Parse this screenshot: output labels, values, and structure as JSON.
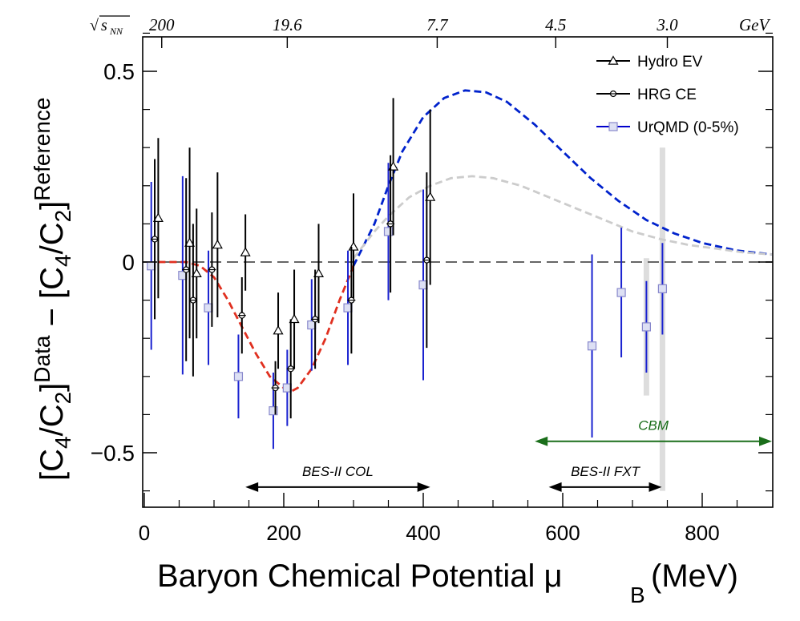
{
  "chart_data": {
    "type": "scatter",
    "xlabel": "Baryon Chemical Potential μ",
    "xlabel_sub": "B",
    "xlabel_unit": "(MeV)",
    "ylabel_left": "[C",
    "ylabel_sub1": "4",
    "ylabel_mid1": "/C",
    "ylabel_sub2": "2",
    "ylabel_mid2": "]",
    "ylabel_sup1": "Data",
    "ylabel_minus": " − [C",
    "ylabel_sup2": "Reference",
    "xlim": [
      0,
      900
    ],
    "ylim": [
      -0.65,
      0.65
    ],
    "x_ticks": [
      0,
      200,
      400,
      600,
      800
    ],
    "x_tick_labels": [
      "0",
      "200",
      "400",
      "600",
      "800"
    ],
    "y_ticks": [
      -0.5,
      0,
      0.5
    ],
    "y_tick_labels": [
      "−0.5",
      "0",
      "0.5"
    ],
    "top_axis": {
      "label": "√s_NN",
      "label_main": "√",
      "label_s": "s",
      "label_sub": "NN",
      "unit": "GeV",
      "ticks": [
        {
          "label": "200",
          "mu": 25
        },
        {
          "label": "19.6",
          "mu": 205
        },
        {
          "label": "7.7",
          "mu": 420
        },
        {
          "label": "4.5",
          "mu": 590
        },
        {
          "label": "3.0",
          "mu": 750
        }
      ]
    },
    "legend": {
      "position": "top-right",
      "entries": [
        {
          "name": "Hydro EV",
          "marker": "triangle",
          "color": "#000000"
        },
        {
          "name": "HRG CE",
          "marker": "cross",
          "color": "#000000"
        },
        {
          "name": "UrQMD (0-5%)",
          "marker": "square",
          "color": "#0000cc"
        }
      ]
    },
    "series": [
      {
        "name": "Hydro EV",
        "marker": "triangle",
        "color": "#000000",
        "points": [
          {
            "x": 20,
            "y": 0.115,
            "err": 0.21
          },
          {
            "x": 65,
            "y": 0.05,
            "err": 0.25
          },
          {
            "x": 75,
            "y": -0.03,
            "err": 0.17
          },
          {
            "x": 105,
            "y": 0.045,
            "err": 0.19
          },
          {
            "x": 145,
            "y": 0.025,
            "err": 0.1
          },
          {
            "x": 192,
            "y": -0.18,
            "err": 0.1
          },
          {
            "x": 215,
            "y": -0.15,
            "err": 0.13
          },
          {
            "x": 250,
            "y": -0.03,
            "err": 0.13
          },
          {
            "x": 300,
            "y": 0.04,
            "err": 0.14
          },
          {
            "x": 357,
            "y": 0.25,
            "err": 0.18
          },
          {
            "x": 410,
            "y": 0.17,
            "err": 0.23
          }
        ]
      },
      {
        "name": "HRG CE",
        "marker": "cross",
        "color": "#000000",
        "points": [
          {
            "x": 15,
            "y": 0.06,
            "err": 0.21
          },
          {
            "x": 60,
            "y": -0.02,
            "err": 0.24
          },
          {
            "x": 70,
            "y": -0.1,
            "err": 0.2
          },
          {
            "x": 97,
            "y": -0.02,
            "err": 0.15
          },
          {
            "x": 140,
            "y": -0.14,
            "err": 0.1
          },
          {
            "x": 188,
            "y": -0.33,
            "err": 0.07
          },
          {
            "x": 210,
            "y": -0.28,
            "err": 0.13
          },
          {
            "x": 245,
            "y": -0.15,
            "err": 0.13
          },
          {
            "x": 297,
            "y": -0.1,
            "err": 0.14
          },
          {
            "x": 353,
            "y": 0.1,
            "err": 0.18
          },
          {
            "x": 405,
            "y": 0.005,
            "err": 0.23
          }
        ]
      },
      {
        "name": "UrQMD (0-5%)",
        "marker": "square",
        "color": "#0000cc",
        "points": [
          {
            "x": 10,
            "y": -0.01,
            "err": 0.22
          },
          {
            "x": 55,
            "y": -0.035,
            "err": 0.26
          },
          {
            "x": 92,
            "y": -0.12,
            "err": 0.15
          },
          {
            "x": 135,
            "y": -0.3,
            "err": 0.11
          },
          {
            "x": 185,
            "y": -0.39,
            "err": 0.1
          },
          {
            "x": 205,
            "y": -0.33,
            "err": 0.1
          },
          {
            "x": 240,
            "y": -0.165,
            "err": 0.12
          },
          {
            "x": 292,
            "y": -0.12,
            "err": 0.15
          },
          {
            "x": 350,
            "y": 0.08,
            "err": 0.18
          },
          {
            "x": 400,
            "y": -0.06,
            "err": 0.25
          },
          {
            "x": 642,
            "y": -0.22,
            "err": 0.24
          },
          {
            "x": 684,
            "y": -0.08,
            "err": 0.17
          },
          {
            "x": 720,
            "y": -0.17,
            "err": 0.12
          },
          {
            "x": 743,
            "y": -0.07,
            "err": 0.12
          }
        ]
      }
    ],
    "syst_bars": [
      {
        "x": 743,
        "y0": -0.6,
        "y1": 0.3,
        "color": "#dddddd"
      },
      {
        "x": 720,
        "y0": -0.35,
        "y1": 0.01,
        "color": "#dddddd"
      }
    ],
    "curves": [
      {
        "style": "dashed",
        "color": "#e03020",
        "x": [
          20,
          60,
          80,
          100,
          120,
          140,
          160,
          180,
          200,
          210,
          220,
          240,
          260,
          280,
          300
        ],
        "y": [
          0.0,
          0.0,
          -0.01,
          -0.04,
          -0.1,
          -0.17,
          -0.24,
          -0.3,
          -0.33,
          -0.34,
          -0.33,
          -0.28,
          -0.2,
          -0.1,
          -0.01
        ]
      },
      {
        "style": "dashed",
        "color": "#0022cc",
        "x": [
          300,
          330,
          350,
          370,
          400,
          430,
          460,
          490,
          520,
          560,
          600,
          640,
          680,
          720,
          760,
          800,
          850,
          900
        ],
        "y": [
          -0.01,
          0.1,
          0.2,
          0.29,
          0.38,
          0.43,
          0.45,
          0.445,
          0.42,
          0.36,
          0.29,
          0.22,
          0.16,
          0.11,
          0.075,
          0.05,
          0.03,
          0.02
        ]
      },
      {
        "style": "dashed",
        "color": "#cccccc",
        "x": [
          300,
          330,
          350,
          380,
          410,
          440,
          470,
          500,
          540,
          580,
          620,
          660,
          700,
          740,
          780,
          820,
          860,
          900
        ],
        "y": [
          0.01,
          0.08,
          0.12,
          0.17,
          0.2,
          0.22,
          0.225,
          0.22,
          0.2,
          0.17,
          0.14,
          0.11,
          0.08,
          0.06,
          0.045,
          0.035,
          0.025,
          0.02
        ]
      }
    ],
    "zero_line": {
      "y": 0,
      "style": "dashed",
      "color": "#666666"
    },
    "annotations": [
      {
        "label": "BES-II COL",
        "x0": 145,
        "x1": 410,
        "y": -0.59,
        "color": "#000000",
        "label_above": true
      },
      {
        "label": "BES-II FXT",
        "x0": 580,
        "x1": 742,
        "y": -0.59,
        "color": "#000000",
        "label_above": true
      },
      {
        "label": "CBM",
        "x0": 560,
        "x1": 900,
        "y": -0.47,
        "color": "#1a6e1a",
        "label_above": true
      }
    ]
  }
}
